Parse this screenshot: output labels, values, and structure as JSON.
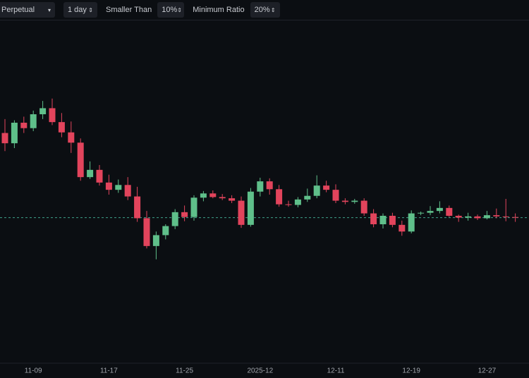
{
  "toolbar": {
    "market": "Perpetual",
    "interval": "1 day",
    "filter_label": "Smaller Than",
    "filter_value": "10%",
    "ratio_label": "Minimum Ratio",
    "ratio_value": "20%"
  },
  "chart_data": {
    "type": "candlestick",
    "categories": [
      null,
      null,
      null,
      "11-09",
      null,
      null,
      null,
      null,
      null,
      null,
      null,
      "11-17",
      null,
      null,
      null,
      null,
      null,
      null,
      null,
      "11-25",
      null,
      null,
      null,
      null,
      null,
      null,
      null,
      "2025-12",
      null,
      null,
      null,
      null,
      null,
      null,
      null,
      "12-11",
      null,
      null,
      null,
      null,
      null,
      null,
      null,
      "12-19",
      null,
      null,
      null,
      null,
      null,
      null,
      null,
      "12-27",
      null,
      null,
      null
    ],
    "open": [
      101500,
      99800,
      103200,
      102300,
      104600,
      105600,
      103300,
      101600,
      99900,
      94200,
      95400,
      93300,
      92100,
      92900,
      91000,
      87400,
      82800,
      84600,
      86100,
      88400,
      87600,
      90800,
      91500,
      90900,
      90700,
      90300,
      86300,
      91800,
      93500,
      92200,
      89700,
      89600,
      90500,
      91100,
      92800,
      92100,
      90300,
      90100,
      90300,
      88200,
      86400,
      87800,
      86300,
      85200,
      88200,
      88300,
      88600,
      89100,
      87800,
      87500,
      87700,
      87400,
      87900,
      87700,
      87600
    ],
    "high": [
      103800,
      103600,
      104200,
      105200,
      106800,
      107200,
      104800,
      103400,
      100600,
      96800,
      96200,
      94600,
      93800,
      94200,
      92600,
      88600,
      85200,
      86400,
      88900,
      89500,
      91200,
      91900,
      92000,
      91400,
      91200,
      91000,
      92400,
      94100,
      94000,
      92900,
      90300,
      90900,
      92300,
      94500,
      93600,
      93000,
      90700,
      90600,
      90700,
      88900,
      88200,
      88300,
      87000,
      88700,
      88500,
      89400,
      90200,
      89500,
      88000,
      88300,
      88000,
      88600,
      89000,
      90600,
      88200
    ],
    "low": [
      98500,
      99000,
      101500,
      101800,
      103800,
      102800,
      100800,
      98200,
      93600,
      93900,
      92800,
      91300,
      91600,
      90400,
      86800,
      82400,
      80600,
      83900,
      85600,
      86900,
      87000,
      90200,
      90700,
      90400,
      89900,
      85800,
      86000,
      91000,
      91300,
      89300,
      89300,
      89200,
      90100,
      90700,
      91700,
      89900,
      89700,
      89800,
      87800,
      85900,
      85700,
      85900,
      84500,
      84900,
      87900,
      87900,
      88200,
      87600,
      86800,
      87000,
      87100,
      87200,
      87400,
      86900,
      86800
    ],
    "close": [
      99800,
      103200,
      102300,
      104600,
      105600,
      103300,
      101600,
      99900,
      94200,
      95400,
      93300,
      92100,
      92900,
      91000,
      87400,
      82800,
      84600,
      86100,
      88400,
      87600,
      90800,
      91500,
      90900,
      90700,
      90300,
      86300,
      91800,
      93500,
      92200,
      89700,
      89600,
      90500,
      91100,
      92800,
      92100,
      90300,
      90100,
      90300,
      88200,
      86400,
      87800,
      86300,
      85200,
      88200,
      88300,
      88600,
      89100,
      87800,
      87500,
      87700,
      87400,
      87900,
      87700,
      87600,
      87500
    ],
    "up_color": "#5fbf8a",
    "down_color": "#e2445c",
    "last_price": 87500,
    "ylim": [
      64000,
      120000
    ]
  }
}
